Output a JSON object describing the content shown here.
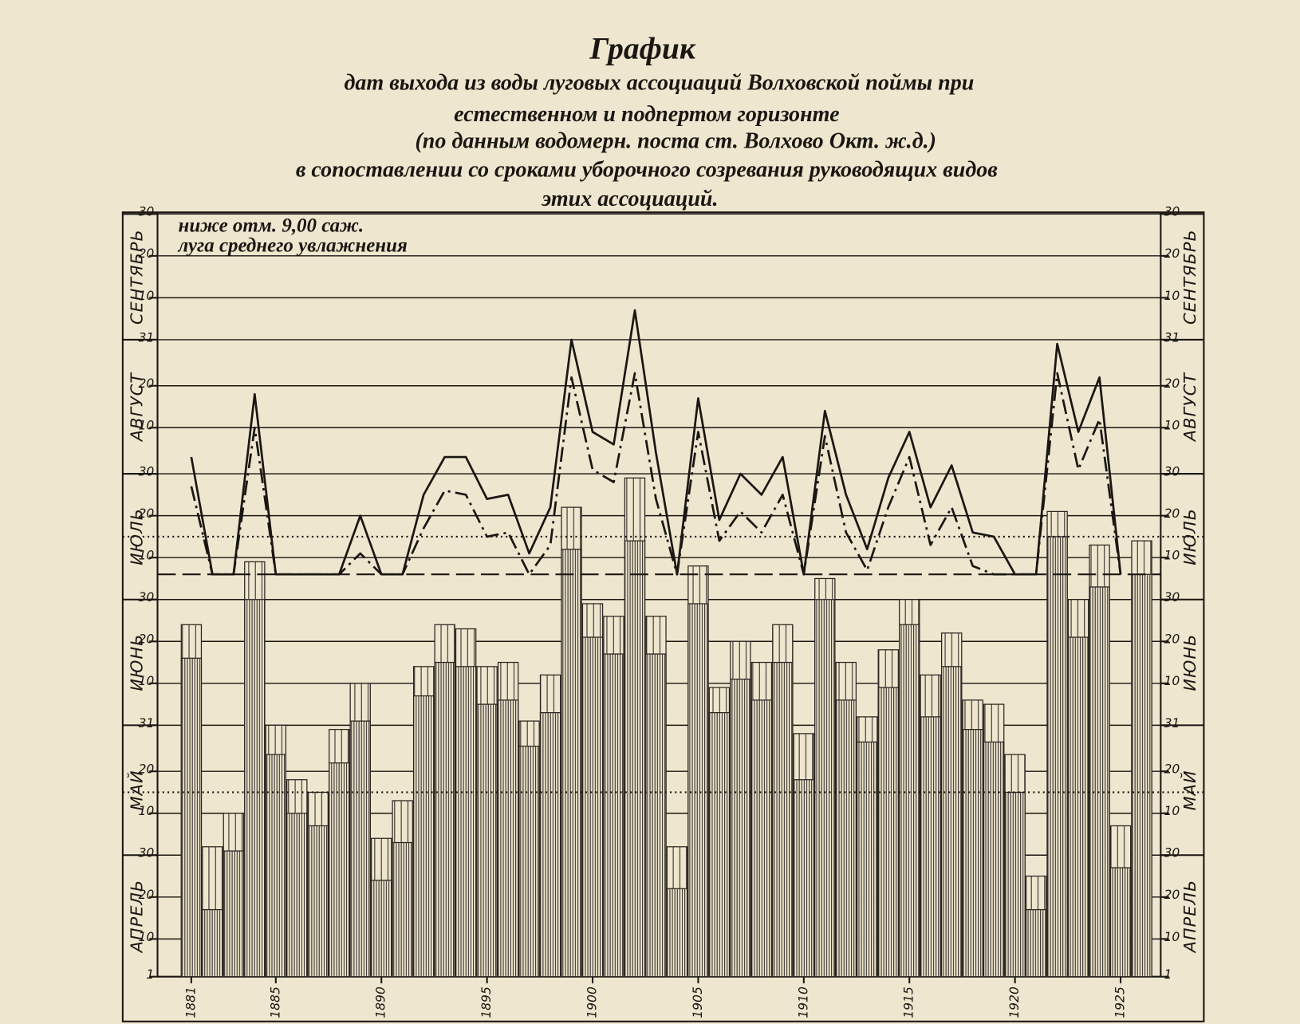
{
  "chart_data": {
    "type": "bar",
    "title": "График",
    "subtitle": [
      "дат выхода из воды луговых ассоциаций Волховской поймы при",
      "естественном и подпертом горизонте",
      "(по данным водомерн. поста ст. Волхово Окт. ж.д.)",
      "в сопоставлении со сроками уборочного созревания руководящих видов",
      "этих ассоциаций."
    ],
    "annotations": [
      "ниже отм. 9,00 саж.",
      "луга среднего увлажнения"
    ],
    "months": [
      "АПРЕЛЬ",
      "МАЙ",
      "ИЮНЬ",
      "ИЮЛЬ",
      "АВГУСТ",
      "СЕНТЯБРЬ"
    ],
    "x": [
      1881,
      1882,
      1883,
      1884,
      1885,
      1886,
      1887,
      1888,
      1889,
      1890,
      1891,
      1892,
      1893,
      1894,
      1895,
      1896,
      1897,
      1898,
      1899,
      1900,
      1901,
      1902,
      1903,
      1904,
      1905,
      1906,
      1907,
      1908,
      1909,
      1910,
      1911,
      1912,
      1913,
      1914,
      1915,
      1916,
      1917,
      1918,
      1919,
      1920,
      1921,
      1922,
      1923,
      1924,
      1925,
      1926
    ],
    "xlim": [
      1879.4,
      1926.9
    ],
    "xticks": [
      1881,
      1885,
      1890,
      1895,
      1900,
      1905,
      1910,
      1915,
      1920,
      1925
    ],
    "ylim": [
      1,
      183
    ],
    "yticks": [
      1,
      {
        "value": 10,
        "label": "10"
      },
      {
        "value": 20,
        "label": "20"
      },
      {
        "value": 30,
        "label": "30"
      },
      {
        "value": 40,
        "label": "10"
      },
      {
        "value": 50,
        "label": "20"
      },
      {
        "value": 61,
        "label": "31"
      },
      {
        "value": 71,
        "label": "10"
      },
      {
        "value": 81,
        "label": "20"
      },
      {
        "value": 91,
        "label": "30"
      },
      {
        "value": 101,
        "label": "10"
      },
      {
        "value": 111,
        "label": "20"
      },
      {
        "value": 121,
        "label": "30"
      },
      {
        "value": 132,
        "label": "10"
      },
      {
        "value": 142,
        "label": "20"
      },
      {
        "value": 153,
        "label": "31"
      },
      {
        "value": 163,
        "label": "10"
      },
      {
        "value": 173,
        "label": "20"
      },
      {
        "value": 183,
        "label": "30"
      }
    ],
    "grid": true,
    "reference_lines": [
      {
        "value": 106,
        "style": "dotted"
      },
      {
        "value": 45,
        "style": "dotted"
      },
      {
        "value": 97,
        "style": "dashed"
      }
    ],
    "series": [
      {
        "type": "bar",
        "color": "#2a2520",
        "hatch": "sparse",
        "values": [
          85,
          32,
          40,
          100,
          61,
          48,
          45,
          60,
          71,
          34,
          43,
          75,
          85,
          84,
          75,
          76,
          62,
          73,
          113,
          90,
          87,
          120,
          87,
          32,
          99,
          70,
          81,
          76,
          85,
          59,
          96,
          76,
          63,
          79,
          91,
          73,
          83,
          67,
          66,
          54,
          25,
          112,
          91,
          104,
          37,
          105
        ]
      },
      {
        "type": "bar",
        "color": "#2a2520",
        "hatch": "dense",
        "values": [
          77,
          17,
          31,
          91,
          54,
          40,
          37,
          52,
          62,
          24,
          33,
          68,
          76,
          75,
          66,
          67,
          56,
          64,
          103,
          82,
          78,
          105,
          78,
          22,
          90,
          64,
          72,
          67,
          76,
          48,
          91,
          67,
          57,
          70,
          85,
          63,
          75,
          60,
          57,
          45,
          17,
          106,
          82,
          94,
          27,
          97
        ]
      },
      {
        "type": "line",
        "color": "#1a1612",
        "dash": "solid",
        "values": [
          125,
          97,
          97,
          140,
          97,
          97,
          97,
          97,
          111,
          97,
          97,
          116,
          125,
          125,
          115,
          116,
          102,
          113,
          153,
          131,
          128,
          160,
          126,
          97,
          139,
          110,
          121,
          116,
          125,
          97,
          136,
          116,
          103,
          120,
          131,
          113,
          123,
          107,
          106,
          97,
          97,
          152,
          131,
          144,
          97,
          null
        ]
      },
      {
        "type": "line",
        "color": "#1a1612",
        "dash": "dashdot",
        "values": [
          118,
          97,
          97,
          132,
          97,
          97,
          97,
          97,
          102,
          97,
          97,
          108,
          117,
          116,
          106,
          107,
          97,
          104,
          144,
          122,
          119,
          145,
          115,
          97,
          131,
          105,
          112,
          107,
          116,
          97,
          130,
          107,
          98,
          113,
          125,
          104,
          113,
          99,
          97,
          97,
          97,
          145,
          122,
          134,
          97,
          null
        ]
      }
    ]
  }
}
